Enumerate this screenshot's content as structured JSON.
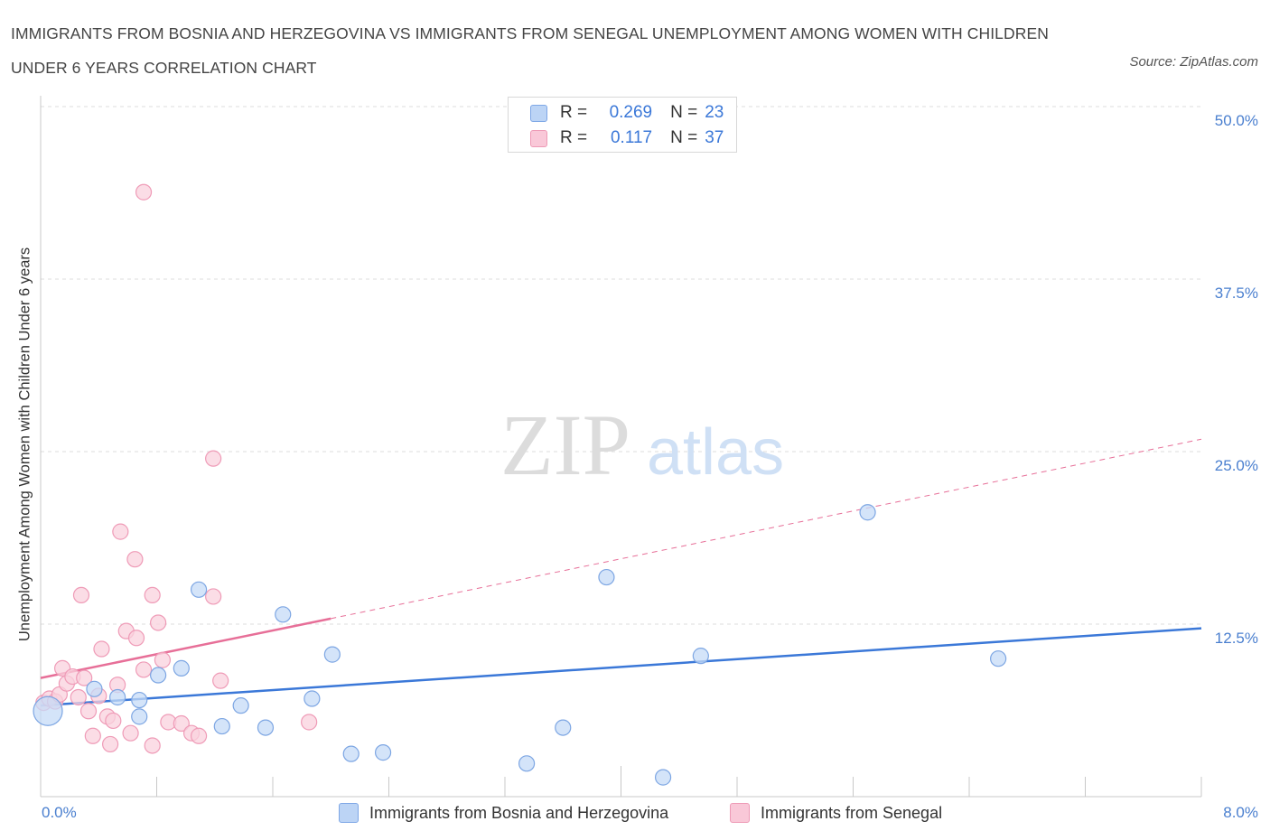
{
  "title": "IMMIGRANTS FROM BOSNIA AND HERZEGOVINA VS IMMIGRANTS FROM SENEGAL UNEMPLOYMENT AMONG WOMEN WITH CHILDREN UNDER 6 YEARS CORRELATION CHART",
  "source": "Source: ZipAtlas.com",
  "watermark": {
    "zip": "ZIP",
    "atlas": "atlas"
  },
  "legend": {
    "r_label": "R =",
    "n_label": "N =",
    "bosnia": {
      "r": "0.269",
      "n": "23"
    },
    "senegal": {
      "r": "0.117",
      "n": "37"
    }
  },
  "colors": {
    "bosnia_fill": "#c6dbf7",
    "bosnia_stroke": "#7da6e3",
    "bosnia_line": "#3b78d8",
    "senegal_fill": "#fad1de",
    "senegal_stroke": "#ef9bb7",
    "senegal_line": "#e76f98",
    "tick_text": "#4a7fcf"
  },
  "chart_data": {
    "type": "scatter",
    "title": "IMMIGRANTS FROM BOSNIA AND HERZEGOVINA VS IMMIGRANTS FROM SENEGAL UNEMPLOYMENT AMONG WOMEN WITH CHILDREN UNDER 6 YEARS CORRELATION CHART",
    "xlabel": "",
    "ylabel": "Unemployment Among Women with Children Under 6 years",
    "xlim": [
      0,
      8
    ],
    "ylim": [
      0,
      50
    ],
    "x_tick_labels": [
      "0.0%",
      "8.0%"
    ],
    "y_ticks": [
      12.5,
      25.0,
      37.5,
      50.0
    ],
    "y_tick_labels": [
      "12.5%",
      "25.0%",
      "37.5%",
      "50.0%"
    ],
    "grid": true,
    "legend_position": "top-center",
    "series": [
      {
        "name": "Immigrants from Bosnia and Herzegovina",
        "color": "blue",
        "points": [
          {
            "x": 0.05,
            "y": 6.2,
            "size": "large"
          },
          {
            "x": 0.37,
            "y": 7.8
          },
          {
            "x": 0.53,
            "y": 7.2
          },
          {
            "x": 0.68,
            "y": 7.0
          },
          {
            "x": 0.68,
            "y": 5.8
          },
          {
            "x": 0.81,
            "y": 8.8
          },
          {
            "x": 0.97,
            "y": 9.3
          },
          {
            "x": 1.09,
            "y": 15.0
          },
          {
            "x": 1.25,
            "y": 5.1
          },
          {
            "x": 1.38,
            "y": 6.6
          },
          {
            "x": 1.55,
            "y": 5.0
          },
          {
            "x": 1.67,
            "y": 13.2
          },
          {
            "x": 1.87,
            "y": 7.1
          },
          {
            "x": 2.01,
            "y": 10.3
          },
          {
            "x": 2.14,
            "y": 3.1
          },
          {
            "x": 2.36,
            "y": 3.2
          },
          {
            "x": 3.35,
            "y": 2.4
          },
          {
            "x": 3.6,
            "y": 5.0
          },
          {
            "x": 3.9,
            "y": 15.9
          },
          {
            "x": 4.29,
            "y": 1.4
          },
          {
            "x": 4.55,
            "y": 10.2
          },
          {
            "x": 5.7,
            "y": 20.6
          },
          {
            "x": 6.6,
            "y": 10.0
          }
        ]
      },
      {
        "name": "Immigrants from Senegal",
        "color": "pink",
        "points": [
          {
            "x": 0.02,
            "y": 6.8
          },
          {
            "x": 0.06,
            "y": 7.1
          },
          {
            "x": 0.1,
            "y": 6.9
          },
          {
            "x": 0.13,
            "y": 7.4
          },
          {
            "x": 0.15,
            "y": 9.3
          },
          {
            "x": 0.18,
            "y": 8.2
          },
          {
            "x": 0.22,
            "y": 8.7
          },
          {
            "x": 0.26,
            "y": 7.2
          },
          {
            "x": 0.28,
            "y": 14.6
          },
          {
            "x": 0.3,
            "y": 8.6
          },
          {
            "x": 0.33,
            "y": 6.2
          },
          {
            "x": 0.36,
            "y": 4.4
          },
          {
            "x": 0.4,
            "y": 7.3
          },
          {
            "x": 0.42,
            "y": 10.7
          },
          {
            "x": 0.46,
            "y": 5.8
          },
          {
            "x": 0.48,
            "y": 3.8
          },
          {
            "x": 0.5,
            "y": 5.5
          },
          {
            "x": 0.53,
            "y": 8.1
          },
          {
            "x": 0.55,
            "y": 19.2
          },
          {
            "x": 0.59,
            "y": 12.0
          },
          {
            "x": 0.62,
            "y": 4.6
          },
          {
            "x": 0.65,
            "y": 17.2
          },
          {
            "x": 0.66,
            "y": 11.5
          },
          {
            "x": 0.71,
            "y": 9.2
          },
          {
            "x": 0.71,
            "y": 43.8
          },
          {
            "x": 0.77,
            "y": 14.6
          },
          {
            "x": 0.77,
            "y": 3.7
          },
          {
            "x": 0.81,
            "y": 12.6
          },
          {
            "x": 0.84,
            "y": 9.9
          },
          {
            "x": 0.88,
            "y": 5.4
          },
          {
            "x": 0.97,
            "y": 5.3
          },
          {
            "x": 1.04,
            "y": 4.6
          },
          {
            "x": 1.09,
            "y": 4.4
          },
          {
            "x": 1.19,
            "y": 24.5
          },
          {
            "x": 1.19,
            "y": 14.5
          },
          {
            "x": 1.24,
            "y": 8.4
          },
          {
            "x": 1.85,
            "y": 5.4
          }
        ]
      }
    ],
    "trend_lines": [
      {
        "series": "Immigrants from Bosnia and Herzegovina",
        "x0": 0,
        "y0": 6.6,
        "x1": 8,
        "y1": 12.2,
        "style": "solid"
      },
      {
        "series": "Immigrants from Senegal",
        "x0": 0,
        "y0": 8.6,
        "x1": 2.0,
        "y1": 12.9,
        "style": "solid"
      },
      {
        "series": "Immigrants from Senegal",
        "x0": 2.0,
        "y0": 12.9,
        "x1": 8,
        "y1": 25.9,
        "style": "dashed"
      }
    ]
  }
}
